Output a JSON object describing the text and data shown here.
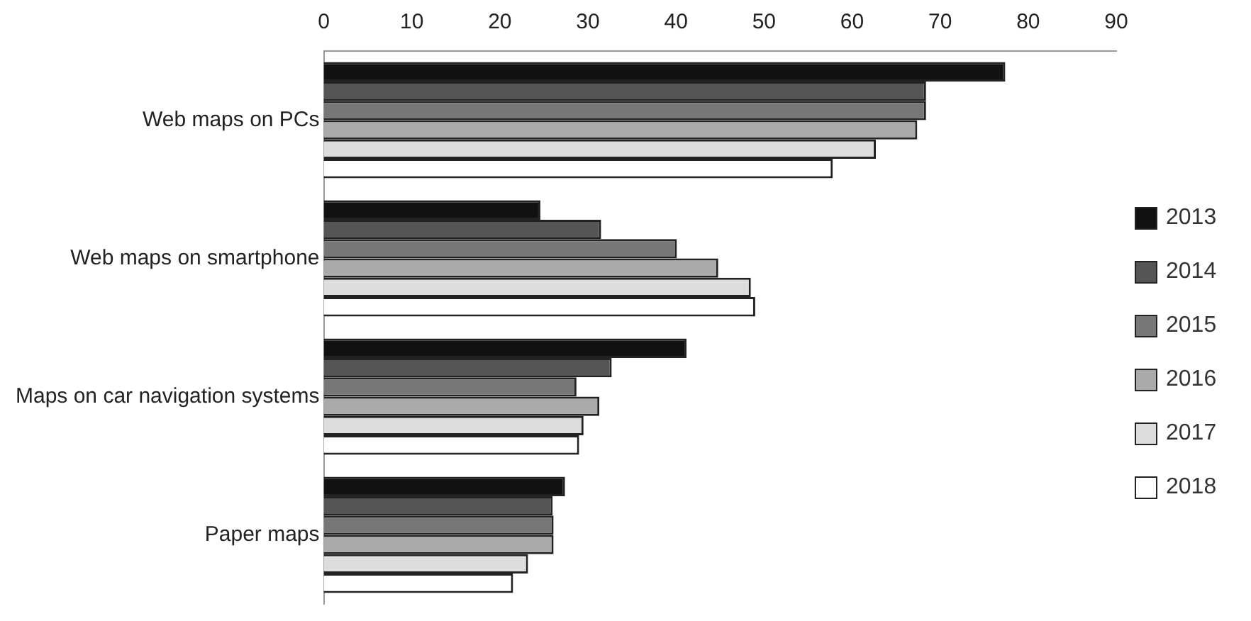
{
  "chart_data": {
    "type": "bar",
    "orientation": "horizontal",
    "categories": [
      "Web maps on PCs",
      "Web maps on smartphone",
      "Maps on car navigation systems",
      "Paper maps"
    ],
    "series": [
      {
        "name": "2013",
        "color": "#111111",
        "values": [
          77.4,
          24.6,
          41.2,
          27.4
        ]
      },
      {
        "name": "2014",
        "color": "#555555",
        "values": [
          68.4,
          31.5,
          32.7,
          26.0
        ]
      },
      {
        "name": "2015",
        "color": "#777777",
        "values": [
          68.4,
          40.1,
          28.7,
          26.1
        ]
      },
      {
        "name": "2016",
        "color": "#aaaaaa",
        "values": [
          67.4,
          44.8,
          31.3,
          26.1
        ]
      },
      {
        "name": "2017",
        "color": "#dddddd",
        "values": [
          62.7,
          48.5,
          29.5,
          23.2
        ]
      },
      {
        "name": "2018",
        "color": "#ffffff",
        "values": [
          57.8,
          49.0,
          29.0,
          21.5
        ]
      }
    ],
    "xlim": [
      0,
      90
    ],
    "xticks": [
      0,
      10,
      20,
      30,
      40,
      50,
      60,
      70,
      80,
      90
    ],
    "grid": false,
    "legend": "right"
  }
}
